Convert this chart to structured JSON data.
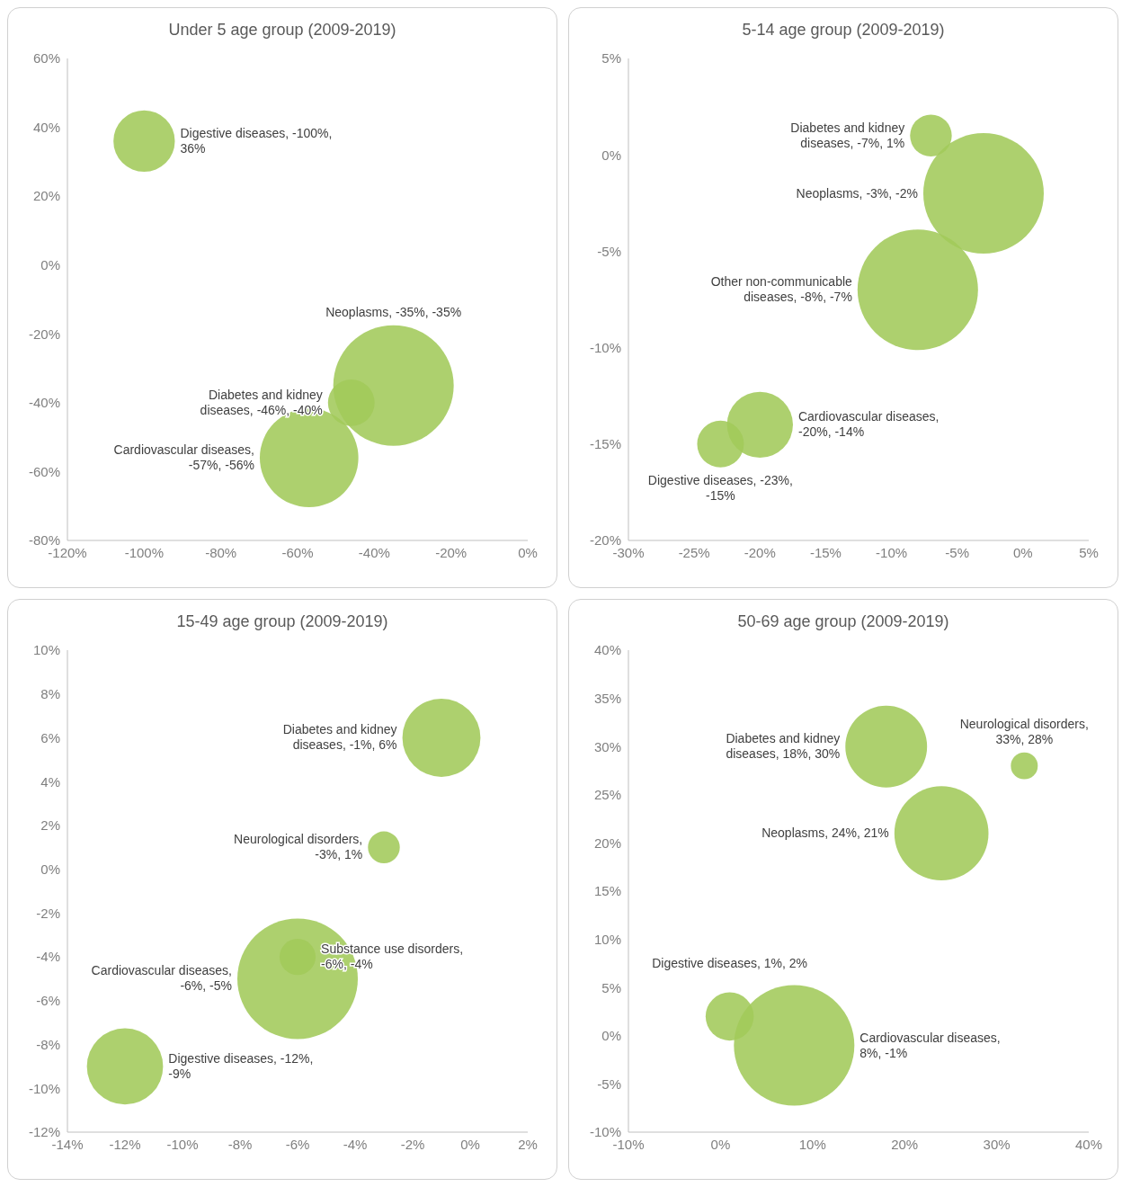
{
  "chart_data": [
    {
      "type": "bubble",
      "title": "Under 5 age group (2009-2019)",
      "xlim": [
        -120,
        0
      ],
      "xticks": [
        {
          "value": -120,
          "label": "-120%"
        },
        {
          "value": -100,
          "label": "-100%"
        },
        {
          "value": -80,
          "label": "-80%"
        },
        {
          "value": -60,
          "label": "-60%"
        },
        {
          "value": -40,
          "label": "-40%"
        },
        {
          "value": -20,
          "label": "-20%"
        },
        {
          "value": 0,
          "label": "0%"
        }
      ],
      "ylim": [
        -80,
        60
      ],
      "yticks": [
        {
          "value": -80,
          "label": "-80%"
        },
        {
          "value": -60,
          "label": "-60%"
        },
        {
          "value": -40,
          "label": "-40%"
        },
        {
          "value": -20,
          "label": "-20%"
        },
        {
          "value": 0,
          "label": "0%"
        },
        {
          "value": 20,
          "label": "20%"
        },
        {
          "value": 40,
          "label": "40%"
        },
        {
          "value": 60,
          "label": "60%"
        }
      ],
      "series": [
        {
          "color": "#a2c95a",
          "x": [
            -100
          ],
          "values": [
            36
          ],
          "sizes": [
            0.26
          ],
          "value_labels": [
            "Digestive diseases, -100%, 36%"
          ]
        },
        {
          "color": "#a2c95a",
          "x": [
            -35
          ],
          "values": [
            -35
          ],
          "sizes": [
            1
          ],
          "value_labels": [
            "Neoplasms, -35%, -35%"
          ]
        },
        {
          "color": "#a2c95a",
          "x": [
            -46
          ],
          "values": [
            -40
          ],
          "sizes": [
            0.15
          ],
          "value_labels": [
            "Diabetes and kidney diseases, -46%, -40%"
          ]
        },
        {
          "color": "#a2c95a",
          "x": [
            -57
          ],
          "values": [
            -56
          ],
          "sizes": [
            0.67
          ],
          "value_labels": [
            "Cardiovascular diseases, -57%, -56%"
          ]
        }
      ]
    },
    {
      "type": "bubble",
      "title": "5-14 age group (2009-2019)",
      "xlim": [
        -30,
        5
      ],
      "xticks": [
        {
          "value": -30,
          "label": "-30%"
        },
        {
          "value": -25,
          "label": "-25%"
        },
        {
          "value": -20,
          "label": "-20%"
        },
        {
          "value": -15,
          "label": "-15%"
        },
        {
          "value": -10,
          "label": "-10%"
        },
        {
          "value": -5,
          "label": "-5%"
        },
        {
          "value": 0,
          "label": "0%"
        },
        {
          "value": 5,
          "label": "5%"
        }
      ],
      "ylim": [
        -20,
        5
      ],
      "yticks": [
        {
          "value": -20,
          "label": "-20%"
        },
        {
          "value": -15,
          "label": "-15%"
        },
        {
          "value": -10,
          "label": "-10%"
        },
        {
          "value": -5,
          "label": "-5%"
        },
        {
          "value": 0,
          "label": "0%"
        },
        {
          "value": 5,
          "label": "5%"
        }
      ],
      "series": [
        {
          "color": "#a2c95a",
          "x": [
            -7
          ],
          "values": [
            1
          ],
          "sizes": [
            0.12
          ],
          "value_labels": [
            "Diabetes and kidney diseases, -7%, 1%"
          ]
        },
        {
          "color": "#a2c95a",
          "x": [
            -3
          ],
          "values": [
            -2
          ],
          "sizes": [
            1
          ],
          "value_labels": [
            "Neoplasms, -3%, -2%"
          ]
        },
        {
          "color": "#a2c95a",
          "x": [
            -8
          ],
          "values": [
            -7
          ],
          "sizes": [
            1
          ],
          "value_labels": [
            "Other non-communicable diseases, -8%, -7%"
          ]
        },
        {
          "color": "#a2c95a",
          "x": [
            -20
          ],
          "values": [
            -14
          ],
          "sizes": [
            0.3
          ],
          "value_labels": [
            "Cardiovascular diseases, -20%, -14%"
          ]
        },
        {
          "color": "#a2c95a",
          "x": [
            -23
          ],
          "values": [
            -15
          ],
          "sizes": [
            0.15
          ],
          "value_labels": [
            "Digestive diseases, -23%, -15%"
          ]
        }
      ]
    },
    {
      "type": "bubble",
      "title": "15-49 age group (2009-2019)",
      "xlim": [
        -14,
        2
      ],
      "xticks": [
        {
          "value": -14,
          "label": "-14%"
        },
        {
          "value": -12,
          "label": "-12%"
        },
        {
          "value": -10,
          "label": "-10%"
        },
        {
          "value": -8,
          "label": "-8%"
        },
        {
          "value": -6,
          "label": "-6%"
        },
        {
          "value": -4,
          "label": "-4%"
        },
        {
          "value": -2,
          "label": "-2%"
        },
        {
          "value": 0,
          "label": "0%"
        },
        {
          "value": 2,
          "label": "2%"
        }
      ],
      "ylim": [
        -12,
        10
      ],
      "yticks": [
        {
          "value": -12,
          "label": "-12%"
        },
        {
          "value": -10,
          "label": "-10%"
        },
        {
          "value": -8,
          "label": "-8%"
        },
        {
          "value": -6,
          "label": "-6%"
        },
        {
          "value": -4,
          "label": "-4%"
        },
        {
          "value": -2,
          "label": "-2%"
        },
        {
          "value": 0,
          "label": "0%"
        },
        {
          "value": 2,
          "label": "2%"
        },
        {
          "value": 4,
          "label": "4%"
        },
        {
          "value": 6,
          "label": "6%"
        },
        {
          "value": 8,
          "label": "8%"
        },
        {
          "value": 10,
          "label": "10%"
        }
      ],
      "series": [
        {
          "color": "#a2c95a",
          "x": [
            -1
          ],
          "values": [
            6
          ],
          "sizes": [
            0.42
          ],
          "value_labels": [
            "Diabetes and kidney diseases, -1%, 6%"
          ]
        },
        {
          "color": "#a2c95a",
          "x": [
            -3
          ],
          "values": [
            1
          ],
          "sizes": [
            0.07
          ],
          "value_labels": [
            "Neurological disorders, -3%, 1%"
          ]
        },
        {
          "color": "#a2c95a",
          "x": [
            -6
          ],
          "values": [
            -5
          ],
          "sizes": [
            1
          ],
          "value_labels": [
            "Cardiovascular diseases, -6%, -5%"
          ]
        },
        {
          "color": "#a2c95a",
          "x": [
            -6
          ],
          "values": [
            -4
          ],
          "sizes": [
            0.09
          ],
          "value_labels": [
            "Substance use disorders, -6%, -4%"
          ]
        },
        {
          "color": "#a2c95a",
          "x": [
            -12
          ],
          "values": [
            -9
          ],
          "sizes": [
            0.4
          ],
          "value_labels": [
            "Digestive diseases, -12%, -9%"
          ]
        }
      ]
    },
    {
      "type": "bubble",
      "title": "50-69 age group (2009-2019)",
      "xlim": [
        -10,
        40
      ],
      "xticks": [
        {
          "value": -10,
          "label": "-10%"
        },
        {
          "value": 0,
          "label": "0%"
        },
        {
          "value": 10,
          "label": "10%"
        },
        {
          "value": 20,
          "label": "20%"
        },
        {
          "value": 30,
          "label": "30%"
        },
        {
          "value": 40,
          "label": "40%"
        }
      ],
      "ylim": [
        -10,
        40
      ],
      "yticks": [
        {
          "value": -10,
          "label": "-10%"
        },
        {
          "value": -5,
          "label": "-5%"
        },
        {
          "value": 0,
          "label": "0%"
        },
        {
          "value": 5,
          "label": "5%"
        },
        {
          "value": 10,
          "label": "10%"
        },
        {
          "value": 15,
          "label": "15%"
        },
        {
          "value": 20,
          "label": "20%"
        },
        {
          "value": 25,
          "label": "25%"
        },
        {
          "value": 30,
          "label": "30%"
        },
        {
          "value": 35,
          "label": "35%"
        },
        {
          "value": 40,
          "label": "40%"
        }
      ],
      "series": [
        {
          "color": "#a2c95a",
          "x": [
            18
          ],
          "values": [
            30
          ],
          "sizes": [
            0.46
          ],
          "value_labels": [
            "Diabetes and kidney diseases, 18%, 30%"
          ]
        },
        {
          "color": "#a2c95a",
          "x": [
            33
          ],
          "values": [
            28
          ],
          "sizes": [
            0.05
          ],
          "value_labels": [
            "Neurological disorders, 33%, 28%"
          ]
        },
        {
          "color": "#a2c95a",
          "x": [
            24
          ],
          "values": [
            21
          ],
          "sizes": [
            0.61
          ],
          "value_labels": [
            "Neoplasms, 24%, 21%"
          ]
        },
        {
          "color": "#a2c95a",
          "x": [
            1
          ],
          "values": [
            2
          ],
          "sizes": [
            0.16
          ],
          "value_labels": [
            "Digestive diseases, 1%, 2%"
          ]
        },
        {
          "color": "#a2c95a",
          "x": [
            8
          ],
          "values": [
            -1
          ],
          "sizes": [
            1
          ],
          "value_labels": [
            "Cardiovascular diseases, 8%, -1%"
          ]
        }
      ]
    }
  ]
}
